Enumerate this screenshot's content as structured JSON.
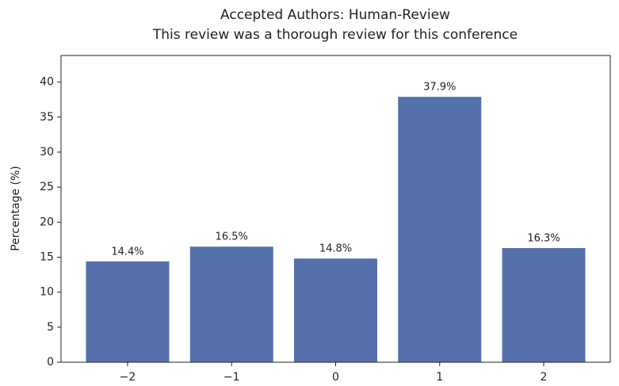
{
  "chart_data": {
    "type": "bar",
    "title": "Accepted Authors: Human-Review",
    "subtitle": "This review was a thorough review for this conference",
    "y_label": "Percentage (%)",
    "categories": [
      "−2",
      "−1",
      "0",
      "1",
      "2"
    ],
    "values": [
      14.4,
      16.5,
      14.8,
      37.9,
      16.3
    ],
    "value_labels": [
      "14.4%",
      "16.5%",
      "14.8%",
      "37.9%",
      "16.3%"
    ],
    "color": "#5571ab",
    "ylim": [
      0,
      43.8
    ],
    "yticks": [
      0,
      5,
      10,
      15,
      20,
      25,
      30,
      35,
      40
    ],
    "grid": false
  }
}
